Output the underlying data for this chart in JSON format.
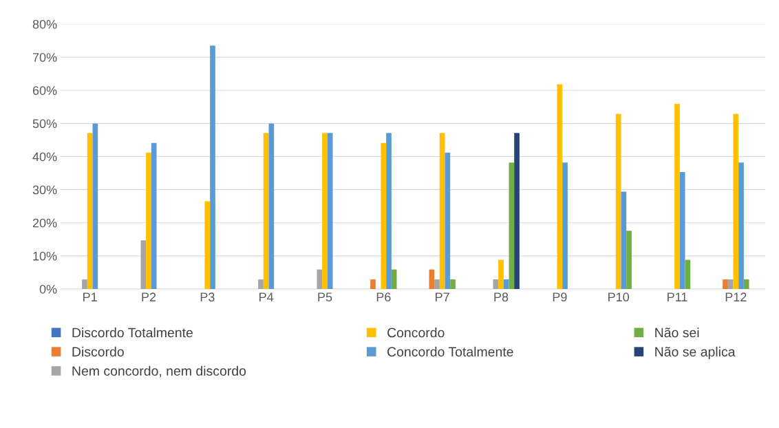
{
  "chart_data": {
    "type": "bar",
    "categories": [
      "P1",
      "P2",
      "P3",
      "P4",
      "P5",
      "P6",
      "P7",
      "P8",
      "P9",
      "P10",
      "P11",
      "P12"
    ],
    "series": [
      {
        "name": "Discordo Totalmente",
        "color": "#4472c4",
        "values": [
          0,
          0,
          0,
          0,
          0,
          0,
          0,
          0,
          0,
          0,
          0,
          0
        ]
      },
      {
        "name": "Discordo",
        "color": "#ed7d31",
        "values": [
          0,
          0,
          0,
          0,
          0,
          2.9,
          5.9,
          0,
          0,
          0,
          0,
          2.9
        ]
      },
      {
        "name": "Nem concordo, nem discordo",
        "color": "#a5a5a5",
        "values": [
          2.9,
          14.7,
          0,
          2.9,
          5.9,
          0,
          2.9,
          2.9,
          0,
          0,
          0,
          2.9
        ]
      },
      {
        "name": "Concordo",
        "color": "#ffc000",
        "values": [
          47.1,
          41.2,
          26.5,
          47.1,
          47.1,
          44.1,
          47.1,
          8.8,
          61.8,
          52.9,
          55.9,
          52.9
        ]
      },
      {
        "name": "Concordo Totalmente",
        "color": "#5b9bd5",
        "values": [
          50,
          44.1,
          73.5,
          50,
          47.1,
          47.1,
          41.2,
          2.9,
          38.2,
          29.4,
          35.3,
          38.2
        ]
      },
      {
        "name": "Não sei",
        "color": "#70ad47",
        "values": [
          0,
          0,
          0,
          0,
          0,
          5.9,
          2.9,
          38.2,
          0,
          17.6,
          8.8,
          2.9
        ]
      },
      {
        "name": "Não se aplica",
        "color": "#264478",
        "values": [
          0,
          0,
          0,
          0,
          0,
          0,
          0,
          47.1,
          0,
          0,
          0,
          0
        ]
      }
    ],
    "ylim": [
      0,
      80
    ],
    "yticks": [
      {
        "value": 0,
        "label": "0%"
      },
      {
        "value": 10,
        "label": "10%"
      },
      {
        "value": 20,
        "label": "20%"
      },
      {
        "value": 30,
        "label": "30%"
      },
      {
        "value": 40,
        "label": "40%"
      },
      {
        "value": 50,
        "label": "50%"
      },
      {
        "value": 60,
        "label": "60%"
      },
      {
        "value": 70,
        "label": "70%"
      },
      {
        "value": 80,
        "label": "80%"
      }
    ],
    "grid": "y",
    "legend": "bottom"
  }
}
